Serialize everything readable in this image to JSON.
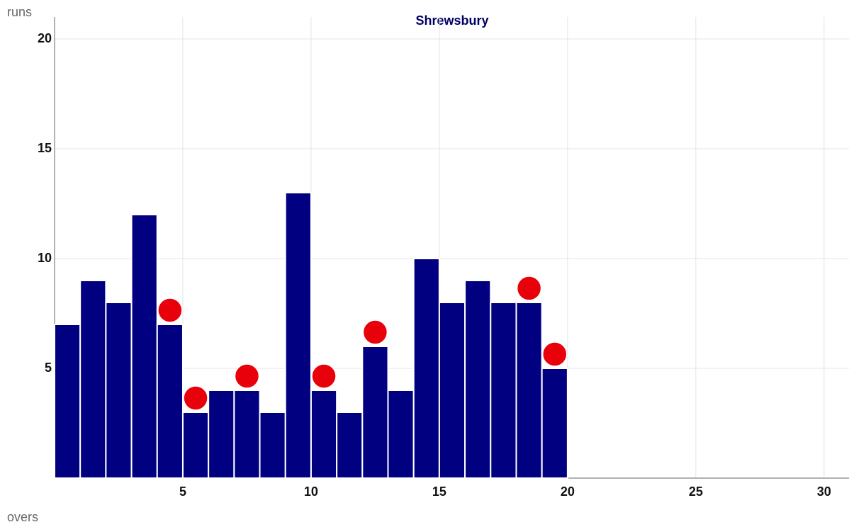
{
  "chart_data": {
    "type": "bar",
    "title": "Shrewsbury",
    "y_label": "runs",
    "x_label": "overs",
    "x": [
      1,
      2,
      3,
      4,
      5,
      6,
      7,
      8,
      9,
      10,
      11,
      12,
      13,
      14,
      15,
      16,
      17,
      18,
      19,
      20
    ],
    "values": [
      7,
      9,
      8,
      12,
      7,
      3,
      4,
      4,
      3,
      13,
      4,
      3,
      6,
      4,
      10,
      8,
      9,
      8,
      8,
      5
    ],
    "color": "#000080",
    "wickets": [
      5,
      6,
      8,
      11,
      13,
      19,
      20
    ],
    "wicket_color": "#e8000b",
    "xlim": [
      0,
      31
    ],
    "xticks": [
      5,
      10,
      15,
      20,
      25,
      30
    ],
    "ylim": [
      0,
      21
    ],
    "yticks": [
      5,
      10,
      15,
      20
    ],
    "grid": true
  }
}
